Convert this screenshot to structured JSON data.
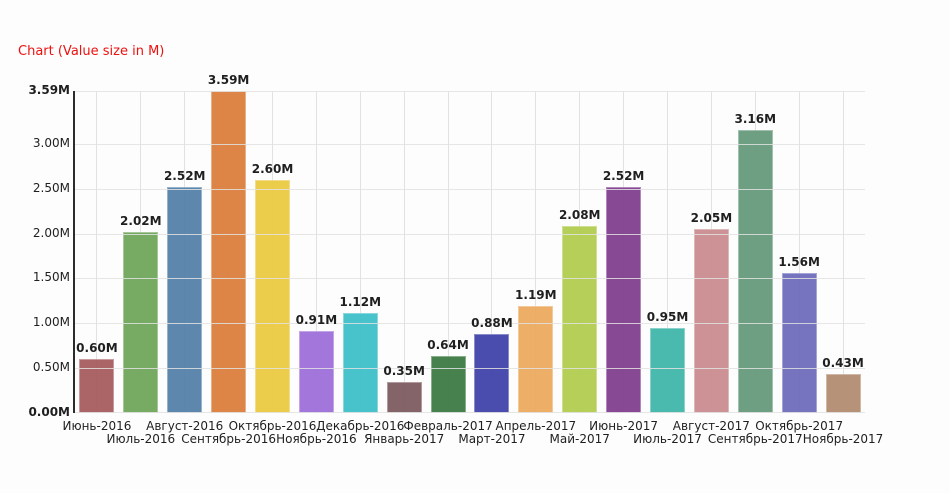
{
  "title": "Chart (Value size in M)",
  "title_color": "#ee1111",
  "chart_data": {
    "type": "bar",
    "title": "Chart (Value size in M)",
    "categories": [
      "Июнь-2016",
      "Июль-2016",
      "Август-2016",
      "Сентябрь-2016",
      "Октябрь-2016",
      "Ноябрь-2016",
      "Декабрь-2016",
      "Январь-2017",
      "Февраль-2017",
      "Март-2017",
      "Апрель-2017",
      "Май-2017",
      "Июнь-2017",
      "Июль-2017",
      "Август-2017",
      "Сентябрь-2017",
      "Октябрь-2017",
      "Ноябрь-2017"
    ],
    "values": [
      0.6,
      2.02,
      2.52,
      3.59,
      2.6,
      0.91,
      1.12,
      0.35,
      0.64,
      0.88,
      1.19,
      2.08,
      2.52,
      0.95,
      2.05,
      3.16,
      1.56,
      0.43
    ],
    "value_labels": [
      "0.60M",
      "2.02M",
      "2.52M",
      "3.59M",
      "2.60M",
      "0.91M",
      "1.12M",
      "0.35M",
      "0.64M",
      "0.88M",
      "1.19M",
      "2.08M",
      "2.52M",
      "0.95M",
      "2.05M",
      "3.16M",
      "1.56M",
      "0.43M"
    ],
    "bar_colors": [
      "#a85d5f",
      "#70a75c",
      "#5681aa",
      "#dc7e3e",
      "#ebcb42",
      "#9e6fd9",
      "#3fc0ca",
      "#7e5c61",
      "#3e7b44",
      "#4144aa",
      "#edaa60",
      "#b3cd50",
      "#81408f",
      "#41b6aa",
      "#cb8d90",
      "#689b7c",
      "#6f6dbb",
      "#b38e71"
    ],
    "xlabel": "",
    "ylabel": "",
    "ylim": [
      0,
      3.59
    ],
    "grid": true,
    "legend_position": "none",
    "y_ticks": [
      {
        "value": 0.0,
        "label": "0.00M",
        "bold": true
      },
      {
        "value": 0.5,
        "label": "0.50M",
        "bold": false
      },
      {
        "value": 1.0,
        "label": "1.00M",
        "bold": false
      },
      {
        "value": 1.5,
        "label": "1.50M",
        "bold": false
      },
      {
        "value": 2.0,
        "label": "2.00M",
        "bold": false
      },
      {
        "value": 2.5,
        "label": "2.50M",
        "bold": false
      },
      {
        "value": 3.0,
        "label": "3.00M",
        "bold": false
      },
      {
        "value": 3.59,
        "label": "3.59M",
        "bold": true
      }
    ]
  }
}
